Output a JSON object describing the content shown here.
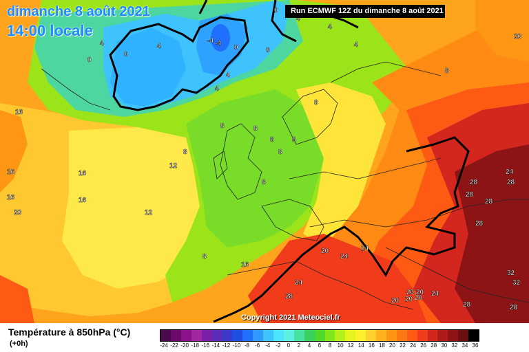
{
  "header": {
    "date": "dimanche 8 août 2021",
    "time": "14:00 locale",
    "run": "Run ECMWF 12Z du dimanche 8 août 2021"
  },
  "copyright": "Copyright 2021 Meteociel.fr",
  "legend": {
    "title": "Température à 850hPa (°C)",
    "subtitle": "(+0h)",
    "ticks": [
      "-24",
      "-22",
      "-20",
      "-18",
      "-16",
      "-14",
      "-12",
      "-10",
      "-8",
      "-6",
      "-4",
      "-2",
      "0",
      "2",
      "4",
      "6",
      "8",
      "10",
      "12",
      "14",
      "16",
      "18",
      "20",
      "22",
      "24",
      "26",
      "28",
      "30",
      "32",
      "34",
      "36"
    ],
    "colors": [
      "#4b0a4b",
      "#6a0a6a",
      "#8c128c",
      "#a0289f",
      "#7a1fa8",
      "#5c2cb8",
      "#3a39c8",
      "#1f4ee0",
      "#2070ff",
      "#2f9bff",
      "#3ec3ff",
      "#4ee3ff",
      "#5cf0e0",
      "#48e0a0",
      "#38d060",
      "#4ed828",
      "#7ee61a",
      "#b4f01a",
      "#e6f41e",
      "#fff02e",
      "#ffd230",
      "#ffb21e",
      "#ff9614",
      "#ff7814",
      "#ff5a14",
      "#f03c1a",
      "#d2261e",
      "#b01a1a",
      "#8c1414",
      "#6a0e0e",
      "#000000"
    ]
  },
  "map_labels": [
    {
      "text": "0"
    },
    {
      "text": "0"
    },
    {
      "text": "-4"
    },
    {
      "text": "0"
    },
    {
      "text": "0"
    },
    {
      "text": "4"
    },
    {
      "text": "4"
    },
    {
      "text": "0"
    },
    {
      "text": "4"
    },
    {
      "text": "4"
    },
    {
      "text": "4"
    },
    {
      "text": "8"
    },
    {
      "text": "16"
    },
    {
      "text": "8"
    },
    {
      "text": "12"
    },
    {
      "text": "16"
    },
    {
      "text": "16"
    },
    {
      "text": "16"
    },
    {
      "text": "16"
    },
    {
      "text": "12"
    },
    {
      "text": "8"
    },
    {
      "text": "8"
    },
    {
      "text": "8"
    },
    {
      "text": "8"
    },
    {
      "text": "8"
    },
    {
      "text": "8"
    },
    {
      "text": "8"
    },
    {
      "text": "8"
    },
    {
      "text": "16"
    },
    {
      "text": "20"
    },
    {
      "text": "24"
    },
    {
      "text": "24"
    },
    {
      "text": "24"
    },
    {
      "text": "28"
    },
    {
      "text": "28"
    },
    {
      "text": "24"
    },
    {
      "text": "28"
    },
    {
      "text": "28"
    },
    {
      "text": "28"
    },
    {
      "text": "20"
    },
    {
      "text": "20"
    },
    {
      "text": "20"
    },
    {
      "text": "24"
    },
    {
      "text": "28"
    },
    {
      "text": "20"
    },
    {
      "text": "20"
    },
    {
      "text": "20"
    },
    {
      "text": "32"
    },
    {
      "text": "32"
    },
    {
      "text": "28"
    },
    {
      "text": "28"
    },
    {
      "text": "20"
    },
    {
      "text": "4"
    },
    {
      "text": "4"
    },
    {
      "text": "-4"
    }
  ]
}
